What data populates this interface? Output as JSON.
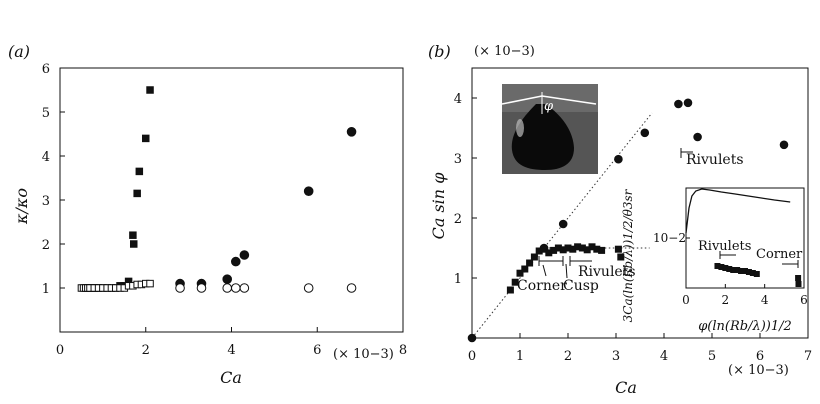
{
  "chart_data": [
    {
      "type": "scatter",
      "panel_label": "(a)",
      "xlabel": "Ca",
      "ylabel": "κ/κo",
      "x_multiplier": "(× 10−3)",
      "xlim": [
        0,
        8
      ],
      "ylim": [
        0,
        6
      ],
      "xticks": [
        0,
        2,
        4,
        6,
        8
      ],
      "yticks": [
        1,
        2,
        3,
        4,
        5,
        6
      ],
      "xtick_labels": [
        "0",
        "2",
        "4",
        "6",
        "8"
      ],
      "ytick_labels": [
        "1",
        "2",
        "3",
        "4",
        "5",
        "6"
      ],
      "series": [
        {
          "marker": "filled-square",
          "x": [
            0.6,
            0.65,
            0.7,
            0.75,
            0.8,
            0.85,
            0.9,
            1.0,
            1.1,
            1.2,
            1.3,
            1.4,
            1.5,
            1.6,
            1.7,
            1.72,
            1.8,
            1.85,
            2.0,
            2.1
          ],
          "y": [
            1.0,
            1.0,
            1.0,
            1.0,
            1.0,
            1.0,
            1.0,
            1.0,
            1.0,
            1.0,
            1.0,
            1.05,
            1.05,
            1.15,
            2.2,
            2.0,
            3.15,
            3.65,
            4.4,
            5.5
          ]
        },
        {
          "marker": "open-square",
          "x": [
            0.5,
            0.55,
            0.6,
            0.65,
            0.7,
            0.8,
            0.9,
            1.0,
            1.1,
            1.2,
            1.3,
            1.4,
            1.5,
            1.6,
            1.7,
            1.8,
            1.9,
            2.0,
            2.1
          ],
          "y": [
            1.0,
            1.0,
            1.0,
            1.0,
            1.0,
            1.0,
            1.0,
            1.0,
            1.0,
            1.0,
            1.0,
            1.0,
            1.0,
            1.05,
            1.05,
            1.08,
            1.08,
            1.1,
            1.1
          ]
        },
        {
          "marker": "filled-circle",
          "x": [
            2.8,
            3.3,
            3.9,
            4.1,
            4.3,
            5.8,
            6.8
          ],
          "y": [
            1.1,
            1.1,
            1.2,
            1.6,
            1.75,
            3.2,
            4.55
          ]
        },
        {
          "marker": "open-circle",
          "x": [
            2.8,
            3.3,
            3.9,
            4.1,
            4.3,
            5.8,
            6.8
          ],
          "y": [
            1.0,
            1.0,
            1.0,
            1.0,
            1.0,
            1.0,
            1.0
          ]
        }
      ]
    },
    {
      "type": "scatter",
      "panel_label": "(b)",
      "xlabel": "Ca",
      "ylabel": "Ca sin φ",
      "x_multiplier": "(× 10−3)",
      "y_multiplier": "(× 10−3)",
      "xlim": [
        0,
        7
      ],
      "ylim": [
        0,
        4.5
      ],
      "xticks": [
        0,
        1,
        2,
        3,
        4,
        5,
        6,
        7
      ],
      "yticks": [
        1,
        2,
        3,
        4
      ],
      "xtick_labels": [
        "0",
        "1",
        "2",
        "3",
        "4",
        "5",
        "6",
        "7"
      ],
      "ytick_labels": [
        "1",
        "2",
        "3",
        "4"
      ],
      "annotations": [
        "Corner",
        "Cusp",
        "Rivulets",
        "Rivulets"
      ],
      "inset_label": "φ",
      "series": [
        {
          "marker": "filled-circle",
          "x": [
            0.0,
            1.5,
            1.9,
            3.05,
            3.6,
            4.3,
            4.5,
            4.7,
            6.5
          ],
          "y": [
            0.0,
            1.5,
            1.9,
            2.98,
            3.42,
            3.9,
            3.92,
            3.35,
            3.22
          ]
        },
        {
          "marker": "filled-square",
          "x": [
            0.8,
            0.9,
            1.0,
            1.1,
            1.2,
            1.3,
            1.4,
            1.5,
            1.6,
            1.7,
            1.8,
            1.9,
            2.0,
            2.1,
            2.2,
            2.3,
            2.4,
            2.5,
            2.6,
            2.7,
            3.05,
            3.1
          ],
          "y": [
            0.8,
            0.93,
            1.08,
            1.15,
            1.25,
            1.35,
            1.45,
            1.48,
            1.42,
            1.46,
            1.5,
            1.47,
            1.5,
            1.48,
            1.52,
            1.5,
            1.47,
            1.52,
            1.48,
            1.46,
            1.48,
            1.35
          ]
        },
        {
          "type": "dotted-line",
          "x": [
            0,
            3.75
          ],
          "y": [
            0,
            3.75
          ]
        },
        {
          "type": "dotted-line",
          "x": [
            1.6,
            3.7
          ],
          "y": [
            1.5,
            1.5
          ]
        }
      ],
      "inset": {
        "type": "scatter",
        "xlabel": "φ(ln(Rb/λ))1/2",
        "ylabel": "3Ca(ln(Rb/λ))1/2/θ3sr",
        "ytick_label": "10−2",
        "xlim": [
          0,
          6
        ],
        "xticks": [
          0,
          2,
          4,
          6
        ],
        "xtick_labels": [
          "0",
          "2",
          "4",
          "6"
        ],
        "annotations": [
          "Rivulets",
          "Corner"
        ],
        "curve": {
          "x": [
            0.0,
            0.15,
            0.3,
            0.5,
            0.8,
            1.2,
            1.8,
            2.5,
            3.5,
            4.5,
            5.3
          ],
          "y": [
            0.55,
            0.8,
            0.92,
            0.97,
            0.99,
            0.98,
            0.96,
            0.94,
            0.91,
            0.88,
            0.86
          ]
        },
        "points": {
          "marker": "filled-square",
          "x": [
            1.6,
            1.8,
            2.0,
            2.2,
            2.4,
            2.6,
            2.8,
            3.0,
            3.2,
            3.4,
            3.6,
            5.7,
            5.72
          ],
          "y": [
            0.22,
            0.21,
            0.2,
            0.19,
            0.18,
            0.18,
            0.17,
            0.17,
            0.16,
            0.15,
            0.14,
            0.1,
            0.04
          ]
        }
      }
    }
  ]
}
